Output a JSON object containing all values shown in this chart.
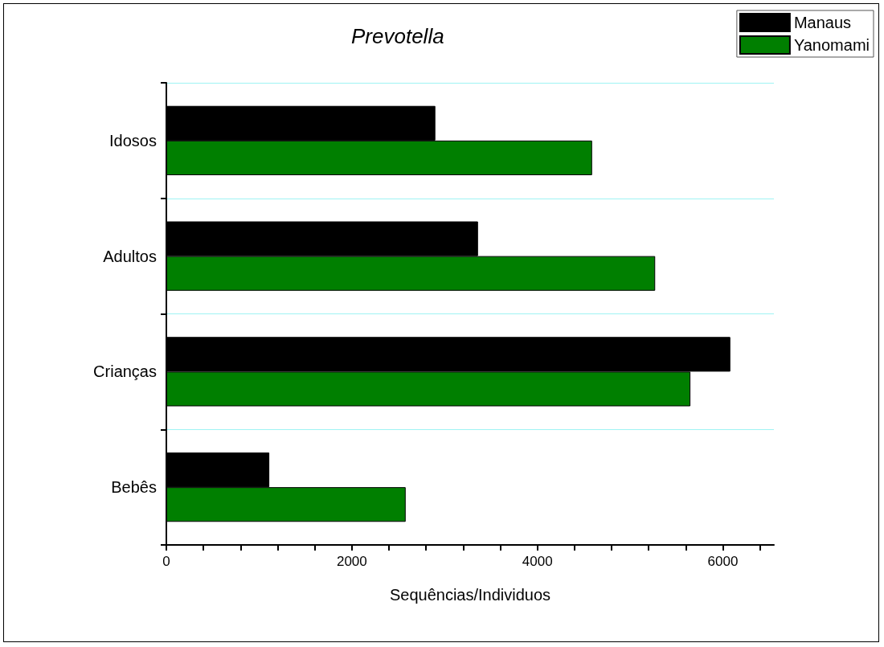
{
  "chart_data": {
    "type": "bar",
    "orientation": "horizontal",
    "title": "Prevotella",
    "xlabel": "Sequências/Individuos",
    "categories": [
      "Idosos",
      "Adultos",
      "Crianças",
      "Bebês"
    ],
    "series": [
      {
        "name": "Manaus",
        "color": "#000000",
        "values": [
          2900,
          3360,
          6080,
          1110
        ]
      },
      {
        "name": "Yanomami",
        "color": "#007f00",
        "values": [
          4590,
          5270,
          5650,
          2580
        ]
      }
    ],
    "xlim": [
      0,
      6550
    ],
    "xticks": [
      0,
      {
        "value": 400,
        "label": null
      },
      {
        "value": 800,
        "label": null
      },
      {
        "value": 1200,
        "label": null
      },
      {
        "value": 1600,
        "label": null
      },
      2000,
      {
        "value": 2400,
        "label": null
      },
      {
        "value": 2800,
        "label": null
      },
      {
        "value": 3200,
        "label": null
      },
      {
        "value": 3600,
        "label": null
      },
      4000,
      {
        "value": 4400,
        "label": null
      },
      {
        "value": 4800,
        "label": null
      },
      {
        "value": 5200,
        "label": null
      },
      {
        "value": 5600,
        "label": null
      },
      6000,
      {
        "value": 6400,
        "label": null
      }
    ],
    "grid": "y",
    "legend": "top right"
  }
}
